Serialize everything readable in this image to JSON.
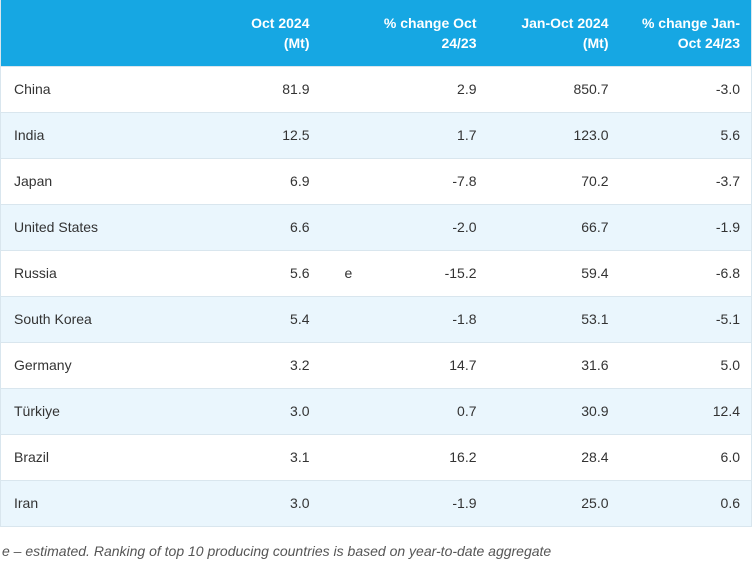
{
  "table": {
    "headers": {
      "country": "",
      "oct": "Oct 2024\n(Mt)",
      "flag": "",
      "oct_change": "% change Oct\n24/23",
      "ytd": "Jan-Oct 2024\n(Mt)",
      "ytd_change": "% change Jan-\nOct 24/23"
    },
    "rows": [
      {
        "country": "China",
        "oct": "81.9",
        "flag": "",
        "oct_change": "2.9",
        "ytd": "850.7",
        "ytd_change": "-3.0"
      },
      {
        "country": "India",
        "oct": "12.5",
        "flag": "",
        "oct_change": "1.7",
        "ytd": "123.0",
        "ytd_change": "5.6"
      },
      {
        "country": "Japan",
        "oct": "6.9",
        "flag": "",
        "oct_change": "-7.8",
        "ytd": "70.2",
        "ytd_change": "-3.7"
      },
      {
        "country": "United States",
        "oct": "6.6",
        "flag": "",
        "oct_change": "-2.0",
        "ytd": "66.7",
        "ytd_change": "-1.9"
      },
      {
        "country": "Russia",
        "oct": "5.6",
        "flag": "e",
        "oct_change": "-15.2",
        "ytd": "59.4",
        "ytd_change": "-6.8"
      },
      {
        "country": "South Korea",
        "oct": "5.4",
        "flag": "",
        "oct_change": "-1.8",
        "ytd": "53.1",
        "ytd_change": "-5.1"
      },
      {
        "country": "Germany",
        "oct": "3.2",
        "flag": "",
        "oct_change": "14.7",
        "ytd": "31.6",
        "ytd_change": "5.0"
      },
      {
        "country": "Türkiye",
        "oct": "3.0",
        "flag": "",
        "oct_change": "0.7",
        "ytd": "30.9",
        "ytd_change": "12.4"
      },
      {
        "country": "Brazil",
        "oct": "3.1",
        "flag": "",
        "oct_change": "16.2",
        "ytd": "28.4",
        "ytd_change": "6.0"
      },
      {
        "country": "Iran",
        "oct": "3.0",
        "flag": "",
        "oct_change": "-1.9",
        "ytd": "25.0",
        "ytd_change": "0.6"
      }
    ]
  },
  "footnote": "e – estimated. Ranking of top 10 producing countries is based on year-to-date aggregate",
  "colors": {
    "header_bg": "#16a7e3",
    "stripe": "#eaf6fd"
  }
}
